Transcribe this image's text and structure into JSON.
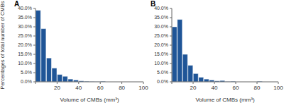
{
  "chart_data": [
    {
      "type": "histogram",
      "title": "A",
      "xlabel": "Volume of CMBs (mm³)",
      "ylabel": "Percentages of total number of CMBs",
      "bins": [
        0,
        5,
        10,
        15,
        20,
        25,
        30,
        35,
        40,
        45,
        50,
        55,
        60,
        65,
        70,
        75,
        80,
        85,
        90,
        95,
        100
      ],
      "values": [
        39,
        29,
        13,
        7.5,
        4,
        3,
        1.5,
        1,
        0.5,
        0.3,
        0.2,
        0.1,
        0.3,
        0,
        0,
        0,
        0,
        0,
        0,
        0
      ],
      "color": "#1f5597",
      "xlim": [
        0,
        100
      ],
      "xticks": [
        0,
        20,
        40,
        60,
        80,
        100
      ],
      "ylim": [
        0,
        40
      ],
      "yticks": [
        {
          "value": 0,
          "label": "0.0%"
        },
        {
          "value": 5,
          "label": "5.0%"
        },
        {
          "value": 10,
          "label": "10.0%"
        },
        {
          "value": 15,
          "label": "15.0%"
        },
        {
          "value": 20,
          "label": "20.0%"
        },
        {
          "value": 25,
          "label": "25.0%"
        },
        {
          "value": 30,
          "label": "30.0%"
        },
        {
          "value": 35,
          "label": "35.0%"
        },
        {
          "value": 40,
          "label": "40.0%"
        }
      ],
      "grid": false
    },
    {
      "type": "histogram",
      "title": "B",
      "xlabel": "Volume of CMBs (mm³)",
      "bins": [
        0,
        5,
        10,
        15,
        20,
        25,
        30,
        35,
        40,
        45,
        50,
        55,
        60,
        65,
        70,
        75,
        80,
        85,
        90,
        95,
        100
      ],
      "values": [
        30,
        34,
        15,
        9,
        4.5,
        2.5,
        1.5,
        1,
        0.5,
        0.7,
        0.2,
        0.3,
        0,
        0,
        0,
        0,
        0.3,
        0,
        0,
        0
      ],
      "color": "#1f5597",
      "xlim": [
        0,
        100
      ],
      "xticks": [
        0,
        20,
        40,
        60,
        80,
        100
      ],
      "ylim": [
        0,
        40
      ],
      "yticks": [
        {
          "value": 0,
          "label": "0.0%"
        },
        {
          "value": 5,
          "label": "5.0%"
        },
        {
          "value": 10,
          "label": "10.0%"
        },
        {
          "value": 15,
          "label": "15.0%"
        },
        {
          "value": 20,
          "label": "20.0%"
        },
        {
          "value": 25,
          "label": "25.0%"
        },
        {
          "value": 30,
          "label": "30.0%"
        },
        {
          "value": 35,
          "label": "35.0%"
        },
        {
          "value": 40,
          "label": "40.0%"
        }
      ],
      "grid": false
    }
  ]
}
